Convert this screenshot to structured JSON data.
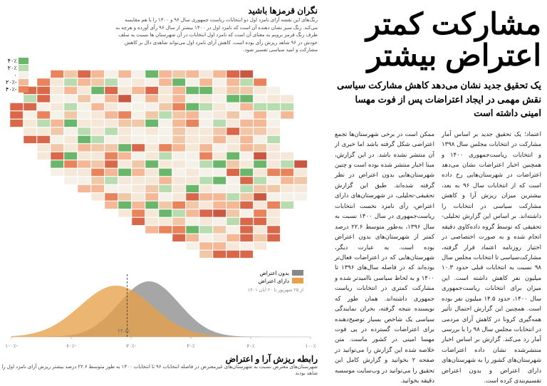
{
  "headline_line1": "مشارکت کمتر",
  "headline_line2": "اعتراض بیشتر",
  "subhead": "یک تحقیق جدید نشان می‌دهد کاهش مشارکت سیاسی نقش مهمی در ایجاد اعتراضات پس از فوت مهسا امینی داشته است",
  "map": {
    "title": "نگران قرمزها باشید",
    "caption": "رنگ‌های این نقشه آرای نامزد اول دو انتخابات ریاست جمهوری سال ۹۶ و ۱۴۰۰ را با هم مقایسه می‌کند. رنگ سبز نشان دهنده آن است که نامزد اول در ۱۴۰۰ بیشتر از سال ۹۶ رأی آورده و هرچه به طرف رنگ قرمز برویم به معنای آن است که نامزد اول انتخابات در آن شهرستان ها نسبت به سلف خودش در ۹۶ شاهد ریزش رأی بوده است. کاهش آرای نامزد اول می‌تواند شاهدی دال بر کاهش مشارکت و امید سیاسی تفسیر شود.",
    "legend": [
      {
        "label": "۴۰٪",
        "color": "#6ab66a"
      },
      {
        "label": "۲۰٪",
        "color": "#b8dcb0"
      },
      {
        "label": "۰",
        "color": "#f5f0e8"
      },
      {
        "label": "-۲۰٪",
        "color": "#f4b896"
      },
      {
        "label": "-۴۰٪",
        "color": "#e8835c"
      }
    ],
    "region_colors": [
      "#e8835c",
      "#f4b896",
      "#f5e8d8",
      "#b8dcb0",
      "#6ab66a",
      "#d9684a",
      "#f0c8a8",
      "#e8d8c0",
      "#f5f0e8",
      "#c85840"
    ]
  },
  "chart": {
    "title": "رابطه ریزش آرا و اعتراض",
    "caption": "شهرستان‌های معترض نسبت به شهرستان‌های غیرمعترض در فاصله انتخابات ۹۶ تا انتخابات ۱۴۰۰ به طور متوسط ۲۲.۶ درصد بیشتر ریزش آرای نامزد اول را شاهد بودند",
    "legend": [
      {
        "label": "بدون اعتراض",
        "color": "#888888"
      },
      {
        "label": "دارای اعتراض",
        "color": "#e8a04a"
      }
    ],
    "protest_label": "از ۲۵ شهریور تا ۲۰ آبان ۱۴۰۱",
    "marker_label": "۲۲.۶٪",
    "x_axis": [
      "-۱۰۰٪",
      "-۶۰٪",
      "-۲۰٪",
      "۲۰٪",
      "۶۰٪",
      "۱۰۰٪"
    ],
    "xlim": [
      -100,
      100
    ],
    "gray_dist": {
      "mean": -8,
      "std": 20,
      "height": 78,
      "color": "#888888",
      "opacity": 0.75
    },
    "orange_dist": {
      "mean": -30,
      "std": 24,
      "height": 72,
      "color": "#e8a04a",
      "opacity": 0.78
    },
    "marker_x": -22.6,
    "background": "#ffffff",
    "grid_color": "#cccccc"
  },
  "body": {
    "col1": "اعتماد؛ یک تحقیق جدید بر اساس آمار مشارکت در انتخابات مجلس سال ۱۳۹۸ و انتخابات ریاست‌جمهوری ۱۴۰۰ و همچنین اخبار اعتراضات نشان می‌دهد اعتراضات در شهرستان‌هایی رخ داده است که از انتخابات سال ۹۶ به بعد، بیشترین میزان ریزش آرا و کاهش مشارکت سیاسی در انتخابات را داشته‌اند. بر اساس این گزارش تحلیلی-تحقیقی که توسط گروه داده‌کاوی دقیقه انجام شده و به صورت اختصاصی در اختیار روزنامه اعتماد قرار گرفته، مشارکت‌سیاسی تا انتخابات مجلس سال ۹۸ نسبت به انتخابات قبلی حدود ۱۰.۳ میلیون نفر کاهش داشته است. این میزان برای انتخابات ریاست‌جمهوری سال ۱۴۰۰، حدود ۱۴.۵ میلیون نفر بوده است. همچنین این گزارش احتمال تأثیر همه‌گیری کرونا در کاهش آرای مردمی در انتخابات مجلس سال ۹۸ را با بررسی آمار رد می‌کند. گزارش بر اساس اخبار منتشرشده نشان داده اعتراضات شهرستان‌های کشور را به شهرستان‌های دارای اعتراض و بدون اعتراض تقسیم‌بندی کرده است.",
    "col2": "ممکن است در برخی شهرستان‌ها تجمع اعتراضی شکل گرفته باشد اما خبری از آن منتشر نشده باشد. در این گزارش، مبنا اخبار منتشر شده بوده است و چنین شهرستان‌هایی بدون اعتراض در نظر گرفته شده‌اند. طبق این گزارش تحقیقی-تحلیلی، در شهرستان‌های دارای اعتراض، رأی نامزد نخست انتخابات ریاست‌جمهوری در سال ۱۴۰۰ نسبت به سال ۱۳۹۶، به‌طور متوسط ۲۲.۶ درصد کمتر از شهرستان‌های بدون اعتراض بوده است. به عبارت دیگر، شهرستان‌هایی که در اعتراضات فعال‌تر بوده‌اند که در فاصله سال‌های ۱۳۹۶ تا ۱۴۰۰ و به لحاظ سیاسی ناامیدتر شده و مشارکت کمتری در انتخابات ریاست جمهوری داشته‌اند. همان طور که نویسنده نتیجه گرفته، بحران نمایندگی سیاسی یک شاخص بسیار توضیح‌دهنده برای اعتراضات گسترده در پی فوت مهسا امینی در کشور ماست. متن خلاصه شده این گزارش را می‌توانید در صفحه ۲ بخوانید و گزارش کامل این تحقیق را می‌توانید در وب‌سایت موسسه دقیقه بخوانید."
  }
}
